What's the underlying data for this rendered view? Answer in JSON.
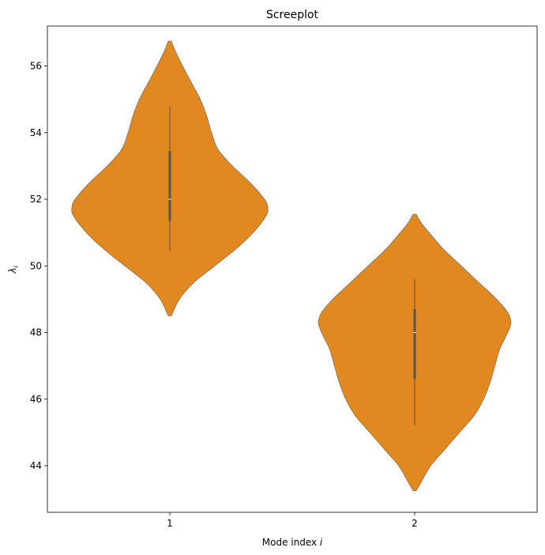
{
  "chart_data": {
    "type": "violin",
    "title": "Screeplot",
    "xlabel_main": "Mode index ",
    "xlabel_var": "i",
    "ylabel_main": "λ",
    "ylabel_sub": "i",
    "categories": [
      "1",
      "2"
    ],
    "ylim": [
      42.6,
      57.2
    ],
    "yticks": [
      "44",
      "46",
      "48",
      "50",
      "52",
      "54",
      "56"
    ],
    "violin_color": "#E1891F",
    "violins": [
      {
        "category": "1",
        "min": 48.5,
        "max": 56.75,
        "whisker_low": 50.45,
        "whisker_high": 54.8,
        "q1": 51.35,
        "median": 52.0,
        "q3": 53.45,
        "density": [
          [
            48.5,
            0.1
          ],
          [
            49.0,
            0.6
          ],
          [
            49.5,
            1.5
          ],
          [
            50.0,
            2.8
          ],
          [
            50.5,
            4.1
          ],
          [
            51.0,
            5.2
          ],
          [
            51.5,
            6.0
          ],
          [
            51.75,
            6.1
          ],
          [
            52.0,
            5.9
          ],
          [
            52.5,
            5.0
          ],
          [
            53.0,
            3.9
          ],
          [
            53.5,
            3.0
          ],
          [
            54.0,
            2.6
          ],
          [
            54.5,
            2.3
          ],
          [
            55.0,
            1.9
          ],
          [
            55.5,
            1.35
          ],
          [
            56.0,
            0.8
          ],
          [
            56.5,
            0.3
          ],
          [
            56.75,
            0.1
          ]
        ]
      },
      {
        "category": "2",
        "min": 43.25,
        "max": 51.55,
        "whisker_low": 45.2,
        "whisker_high": 49.6,
        "q1": 46.6,
        "median": 48.0,
        "q3": 48.7,
        "density": [
          [
            43.25,
            0.1
          ],
          [
            43.5,
            0.4
          ],
          [
            44.0,
            1.0
          ],
          [
            44.5,
            1.9
          ],
          [
            45.0,
            2.8
          ],
          [
            45.5,
            3.7
          ],
          [
            46.0,
            4.3
          ],
          [
            46.5,
            4.7
          ],
          [
            47.0,
            5.0
          ],
          [
            47.5,
            5.3
          ],
          [
            48.0,
            5.8
          ],
          [
            48.3,
            6.0
          ],
          [
            48.6,
            5.8
          ],
          [
            49.0,
            5.1
          ],
          [
            49.5,
            4.0
          ],
          [
            50.0,
            2.9
          ],
          [
            50.5,
            1.8
          ],
          [
            51.0,
            0.9
          ],
          [
            51.3,
            0.4
          ],
          [
            51.55,
            0.1
          ]
        ]
      }
    ]
  }
}
